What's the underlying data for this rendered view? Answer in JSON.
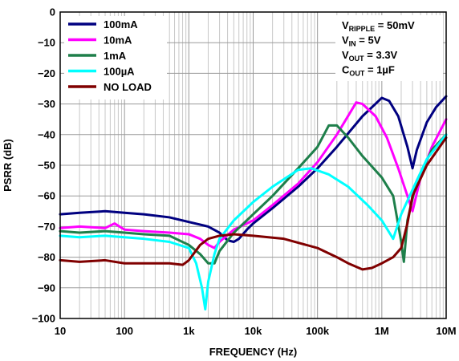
{
  "chart_data": {
    "type": "line",
    "xlabel": "FREQUENCY (Hz)",
    "ylabel": "PSRR (dB)",
    "xscale": "log",
    "xlim": [
      10,
      10000000
    ],
    "ylim": [
      -100,
      0
    ],
    "grid": true,
    "legend_position": "top-left",
    "x_tick_labels": [
      "10",
      "100",
      "1k",
      "10k",
      "100k",
      "1M",
      "10M"
    ],
    "y_tick_labels": [
      "0",
      "−10",
      "−20",
      "−30",
      "−40",
      "−50",
      "−60",
      "−70",
      "−80",
      "−90",
      "−100"
    ],
    "conditions": [
      {
        "main": "V",
        "sub": "RIPPLE",
        "rest": " = 50mV"
      },
      {
        "main": "V",
        "sub": "IN",
        "rest": " = 5V"
      },
      {
        "main": "V",
        "sub": "OUT",
        "rest": " = 3.3V"
      },
      {
        "main": "C",
        "sub": "OUT",
        "rest": " = 1µF"
      }
    ],
    "series": [
      {
        "name": "100mA",
        "color": "#000080",
        "points": [
          [
            10,
            -66
          ],
          [
            20,
            -65.5
          ],
          [
            50,
            -65
          ],
          [
            100,
            -65.5
          ],
          [
            200,
            -66
          ],
          [
            500,
            -67
          ],
          [
            1000,
            -68.5
          ],
          [
            2000,
            -70
          ],
          [
            3000,
            -72
          ],
          [
            4000,
            -74.5
          ],
          [
            5000,
            -75
          ],
          [
            6000,
            -74
          ],
          [
            8000,
            -71
          ],
          [
            10000,
            -69
          ],
          [
            20000,
            -64
          ],
          [
            50000,
            -57
          ],
          [
            100000,
            -51
          ],
          [
            200000,
            -44
          ],
          [
            500000,
            -34
          ],
          [
            1000000,
            -28
          ],
          [
            1300000,
            -29
          ],
          [
            1800000,
            -34
          ],
          [
            2500000,
            -44
          ],
          [
            3000000,
            -51
          ],
          [
            3500000,
            -45
          ],
          [
            5000000,
            -36
          ],
          [
            7000000,
            -31
          ],
          [
            10000000,
            -27.5
          ]
        ]
      },
      {
        "name": "10mA",
        "color": "#ff00ff",
        "points": [
          [
            10,
            -70.5
          ],
          [
            20,
            -70
          ],
          [
            50,
            -70.5
          ],
          [
            70,
            -69
          ],
          [
            100,
            -71
          ],
          [
            200,
            -71.5
          ],
          [
            500,
            -72
          ],
          [
            1000,
            -72.5
          ],
          [
            1500,
            -74
          ],
          [
            2000,
            -76
          ],
          [
            2500,
            -77
          ],
          [
            3000,
            -75
          ],
          [
            5000,
            -71
          ],
          [
            10000,
            -68
          ],
          [
            20000,
            -63
          ],
          [
            50000,
            -56
          ],
          [
            100000,
            -49
          ],
          [
            200000,
            -40
          ],
          [
            400000,
            -29.5
          ],
          [
            500000,
            -30
          ],
          [
            800000,
            -34
          ],
          [
            1200000,
            -41
          ],
          [
            1800000,
            -51
          ],
          [
            2500000,
            -60
          ],
          [
            3000000,
            -65
          ],
          [
            4000000,
            -54
          ],
          [
            6000000,
            -44
          ],
          [
            10000000,
            -35
          ]
        ]
      },
      {
        "name": "1mA",
        "color": "#1e7f4a",
        "points": [
          [
            10,
            -71.5
          ],
          [
            20,
            -72
          ],
          [
            50,
            -71.5
          ],
          [
            100,
            -72
          ],
          [
            200,
            -72.5
          ],
          [
            500,
            -73
          ],
          [
            1000,
            -76
          ],
          [
            1500,
            -79
          ],
          [
            2000,
            -82
          ],
          [
            2500,
            -82
          ],
          [
            3000,
            -78
          ],
          [
            5000,
            -72
          ],
          [
            10000,
            -66
          ],
          [
            20000,
            -60
          ],
          [
            50000,
            -51
          ],
          [
            100000,
            -44
          ],
          [
            150000,
            -37
          ],
          [
            200000,
            -37
          ],
          [
            300000,
            -41
          ],
          [
            500000,
            -47
          ],
          [
            1000000,
            -54
          ],
          [
            1500000,
            -60
          ],
          [
            2000000,
            -75
          ],
          [
            2200000,
            -81.5
          ],
          [
            2500000,
            -68
          ],
          [
            3500000,
            -55
          ],
          [
            6000000,
            -45
          ],
          [
            10000000,
            -40
          ]
        ]
      },
      {
        "name": "100µA",
        "color": "#00ffff",
        "points": [
          [
            10,
            -73
          ],
          [
            20,
            -73.5
          ],
          [
            50,
            -73
          ],
          [
            100,
            -73.5
          ],
          [
            200,
            -74
          ],
          [
            500,
            -75
          ],
          [
            1000,
            -77
          ],
          [
            1300,
            -82
          ],
          [
            1600,
            -90
          ],
          [
            1800,
            -97
          ],
          [
            2000,
            -88
          ],
          [
            2500,
            -79
          ],
          [
            3000,
            -74
          ],
          [
            5000,
            -68
          ],
          [
            10000,
            -62
          ],
          [
            20000,
            -57
          ],
          [
            50000,
            -51.5
          ],
          [
            80000,
            -51
          ],
          [
            150000,
            -53
          ],
          [
            300000,
            -57
          ],
          [
            600000,
            -63
          ],
          [
            1000000,
            -68
          ],
          [
            1500000,
            -74
          ],
          [
            2000000,
            -66
          ],
          [
            3000000,
            -58
          ],
          [
            5000000,
            -48
          ],
          [
            10000000,
            -40
          ]
        ]
      },
      {
        "name": "NO LOAD",
        "color": "#800000",
        "points": [
          [
            10,
            -81
          ],
          [
            20,
            -81.5
          ],
          [
            50,
            -81
          ],
          [
            100,
            -82
          ],
          [
            200,
            -82
          ],
          [
            500,
            -82
          ],
          [
            800,
            -82.5
          ],
          [
            1000,
            -81
          ],
          [
            1500,
            -76
          ],
          [
            2000,
            -74
          ],
          [
            3000,
            -73
          ],
          [
            5000,
            -72.5
          ],
          [
            10000,
            -73
          ],
          [
            30000,
            -74
          ],
          [
            100000,
            -77
          ],
          [
            200000,
            -80
          ],
          [
            300000,
            -82
          ],
          [
            500000,
            -84
          ],
          [
            700000,
            -83.5
          ],
          [
            1000000,
            -82
          ],
          [
            1500000,
            -80
          ],
          [
            2000000,
            -77
          ],
          [
            2500000,
            -69
          ],
          [
            3000000,
            -60
          ],
          [
            5000000,
            -50
          ],
          [
            10000000,
            -41
          ]
        ]
      }
    ]
  }
}
